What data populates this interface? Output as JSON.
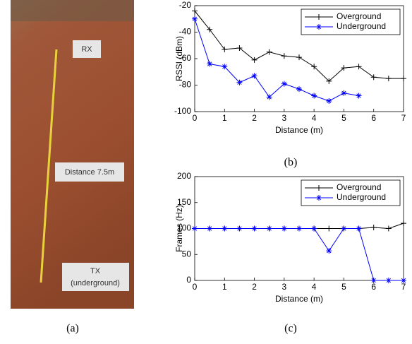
{
  "photo": {
    "labels": [
      "RX",
      "Distance 7.5m"
    ],
    "tx_label": [
      "TX",
      "(underground)"
    ]
  },
  "captions": [
    "(a)",
    "(b)",
    "(c)"
  ],
  "chart_data": [
    {
      "type": "line",
      "xlabel": "Distance (m)",
      "ylabel": "RSSI (dBm)",
      "x": [
        0,
        0.5,
        1,
        1.5,
        2,
        2.5,
        3,
        3.5,
        4,
        4.5,
        5,
        5.5,
        6,
        6.5,
        7
      ],
      "xlim": [
        0,
        7
      ],
      "xticks": [
        0,
        1,
        2,
        3,
        4,
        5,
        6,
        7
      ],
      "ylim": [
        -100,
        -20
      ],
      "yticks": [
        -100,
        -80,
        -60,
        -40,
        -20
      ],
      "legend": "upper right",
      "grid": false,
      "series": [
        {
          "name": "Overground",
          "color": "#000000",
          "marker": "+",
          "values": [
            -24,
            -38,
            -53,
            -52,
            -61,
            -55,
            -58,
            -59,
            -66,
            -77,
            -67,
            -66,
            -74,
            -75,
            -75
          ]
        },
        {
          "name": "Underground",
          "color": "#0000ff",
          "marker": "*",
          "values": [
            -30,
            -64,
            -66,
            -78,
            -73,
            -89,
            -79,
            -83,
            -88,
            -92,
            -86,
            -88,
            null,
            null,
            null
          ]
        }
      ]
    },
    {
      "type": "line",
      "xlabel": "Distance (m)",
      "ylabel": "Frames (Hz)",
      "x": [
        0,
        0.5,
        1,
        1.5,
        2,
        2.5,
        3,
        3.5,
        4,
        4.5,
        5,
        5.5,
        6,
        6.5,
        7
      ],
      "xlim": [
        0,
        7
      ],
      "xticks": [
        0,
        1,
        2,
        3,
        4,
        5,
        6,
        7
      ],
      "ylim": [
        0,
        200
      ],
      "yticks": [
        0,
        50,
        100,
        150,
        200
      ],
      "legend": "upper right",
      "grid": false,
      "series": [
        {
          "name": "Overground",
          "color": "#000000",
          "marker": "+",
          "values": [
            100,
            100,
            100,
            100,
            100,
            100,
            100,
            100,
            100,
            100,
            100,
            100,
            102,
            100,
            110
          ]
        },
        {
          "name": "Underground",
          "color": "#0000ff",
          "marker": "*",
          "values": [
            100,
            100,
            100,
            100,
            100,
            100,
            100,
            100,
            100,
            57,
            100,
            100,
            0,
            0,
            0
          ]
        }
      ]
    }
  ]
}
